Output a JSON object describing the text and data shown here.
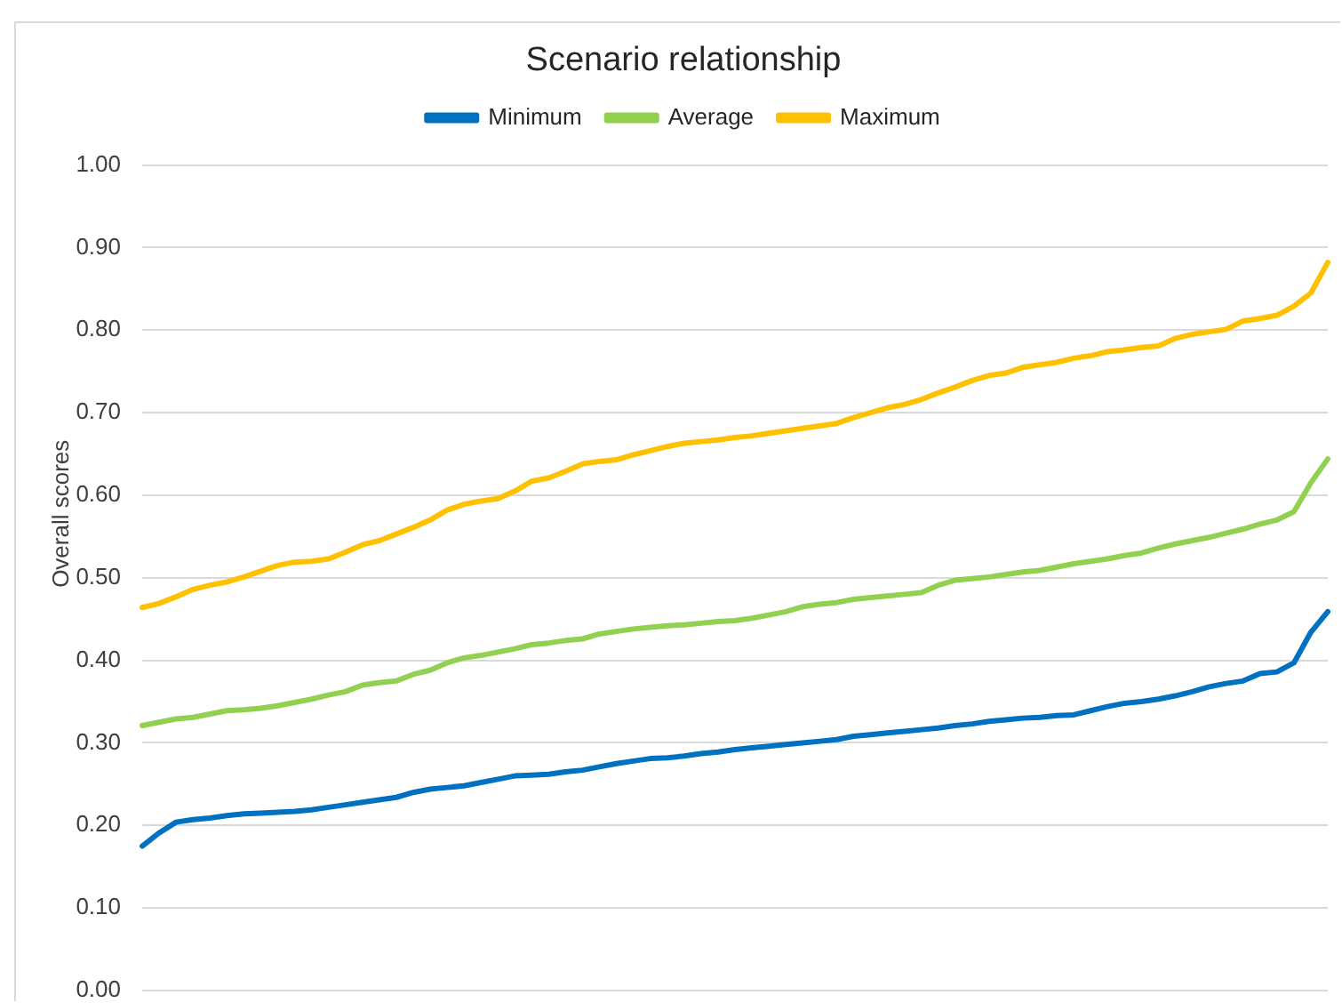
{
  "chart_data": {
    "type": "line",
    "title": "Scenario relationship",
    "ylabel": "Overall scores",
    "categories": [
      null,
      null,
      null,
      null,
      null,
      null,
      null,
      null,
      null,
      null,
      null,
      null,
      null,
      null,
      null,
      null,
      null,
      null,
      null,
      null,
      null,
      null,
      null,
      null,
      null,
      null,
      null,
      null,
      null,
      null,
      null,
      null,
      null,
      null,
      null,
      null,
      null,
      null,
      null,
      null,
      null,
      null,
      null,
      null,
      null,
      null,
      null,
      null,
      null,
      null,
      null,
      null,
      null,
      null,
      null,
      null,
      null,
      null,
      null,
      null,
      null,
      null,
      null,
      null,
      null,
      null,
      null,
      null,
      null,
      null,
      null
    ],
    "series": [
      {
        "name": "Minimum",
        "color": "#0070c0",
        "values": [
          0.175,
          0.191,
          0.204,
          0.207,
          0.209,
          0.212,
          0.214,
          0.215,
          0.216,
          0.217,
          0.219,
          0.222,
          0.225,
          0.228,
          0.231,
          0.234,
          0.24,
          0.244,
          0.246,
          0.248,
          0.252,
          0.256,
          0.26,
          0.261,
          0.262,
          0.265,
          0.267,
          0.271,
          0.275,
          0.278,
          0.281,
          0.282,
          0.284,
          0.287,
          0.289,
          0.292,
          0.294,
          0.296,
          0.298,
          0.3,
          0.302,
          0.304,
          0.308,
          0.31,
          0.312,
          0.314,
          0.316,
          0.318,
          0.321,
          0.323,
          0.326,
          0.328,
          0.33,
          0.331,
          0.333,
          0.334,
          0.339,
          0.344,
          0.348,
          0.35,
          0.353,
          0.357,
          0.362,
          0.368,
          0.372,
          0.375,
          0.384,
          0.386,
          0.397,
          0.434,
          0.459
        ]
      },
      {
        "name": "Average",
        "color": "#92d050",
        "values": [
          0.321,
          0.325,
          0.329,
          0.331,
          0.335,
          0.339,
          0.34,
          0.342,
          0.345,
          0.349,
          0.353,
          0.358,
          0.362,
          0.37,
          0.373,
          0.375,
          0.383,
          0.388,
          0.397,
          0.403,
          0.406,
          0.41,
          0.414,
          0.419,
          0.421,
          0.424,
          0.426,
          0.432,
          0.435,
          0.438,
          0.44,
          0.442,
          0.443,
          0.445,
          0.447,
          0.448,
          0.451,
          0.455,
          0.459,
          0.465,
          0.468,
          0.47,
          0.474,
          0.476,
          0.478,
          0.48,
          0.482,
          0.491,
          0.497,
          0.499,
          0.501,
          0.504,
          0.507,
          0.509,
          0.513,
          0.517,
          0.52,
          0.523,
          0.527,
          0.53,
          0.536,
          0.541,
          0.545,
          0.549,
          0.554,
          0.559,
          0.565,
          0.57,
          0.58,
          0.615,
          0.644
        ]
      },
      {
        "name": "Maximum",
        "color": "#ffc000",
        "values": [
          0.464,
          0.469,
          0.477,
          0.486,
          0.491,
          0.495,
          0.501,
          0.508,
          0.515,
          0.519,
          0.52,
          0.523,
          0.531,
          0.54,
          0.545,
          0.553,
          0.561,
          0.57,
          0.582,
          0.589,
          0.593,
          0.596,
          0.605,
          0.617,
          0.621,
          0.629,
          0.638,
          0.641,
          0.643,
          0.649,
          0.654,
          0.659,
          0.663,
          0.665,
          0.667,
          0.67,
          0.672,
          0.675,
          0.678,
          0.681,
          0.684,
          0.687,
          0.694,
          0.7,
          0.706,
          0.71,
          0.716,
          0.724,
          0.731,
          0.739,
          0.745,
          0.748,
          0.755,
          0.758,
          0.761,
          0.766,
          0.769,
          0.774,
          0.776,
          0.779,
          0.781,
          0.79,
          0.795,
          0.798,
          0.801,
          0.811,
          0.814,
          0.818,
          0.829,
          0.845,
          0.882
        ]
      }
    ],
    "ylim": [
      0,
      1
    ],
    "yticks": [
      {
        "value": 0,
        "label": "0.00"
      },
      {
        "value": 0.1,
        "label": "0.10"
      },
      {
        "value": 0.2,
        "label": "0.20"
      },
      {
        "value": 0.3,
        "label": "0.30"
      },
      {
        "value": 0.4,
        "label": "0.40"
      },
      {
        "value": 0.5,
        "label": "0.50"
      },
      {
        "value": 0.6,
        "label": "0.60"
      },
      {
        "value": 0.7,
        "label": "0.70"
      },
      {
        "value": 0.8,
        "label": "0.80"
      },
      {
        "value": 0.9,
        "label": "0.90"
      },
      {
        "value": 1,
        "label": "1.00"
      }
    ],
    "grid": "y",
    "legend": "top",
    "tick_labels": "y"
  }
}
